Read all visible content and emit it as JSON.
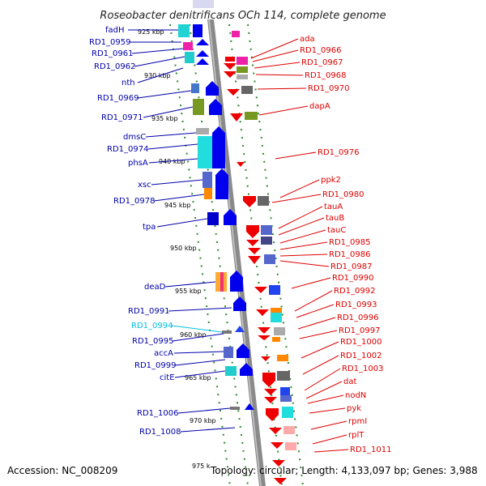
{
  "title": "Roseobacter denitrificans OCh 114, complete genome",
  "footer": {
    "accession": "Accession: NC_008209",
    "stats": "Topology: circular; Length: 4,133,097 bp; Genes: 3,988"
  },
  "colors": {
    "left_label": "#0000aa",
    "highlight_label": "#00c0e0",
    "right_label": "#dd0000",
    "backbone": "#8a8a8a",
    "tick_dots": "#2e8b2e"
  },
  "kbp_ticks": [
    "925 kbp",
    "930 kbp",
    "935 kbp",
    "940 kbp",
    "945 kbp",
    "950 kbp",
    "955 kbp",
    "960 kbp",
    "965 kbp",
    "970 kbp",
    "975 k"
  ],
  "left_genes": [
    "fadH",
    "RD1_0959",
    "RD1_0961",
    "RD1_0962",
    "nth",
    "RD1_0969",
    "RD1_0971",
    "dmsC",
    "RD1_0974",
    "phsA",
    "xsc",
    "RD1_0978",
    "tpa",
    "deaD",
    "RD1_0991",
    "RD1_0994",
    "RD1_0995",
    "accA",
    "RD1_0999",
    "citE",
    "RD1_1006",
    "RD1_1008"
  ],
  "right_genes": [
    "ada",
    "RD1_0966",
    "RD1_0967",
    "RD1_0968",
    "RD1_0970",
    "dapA",
    "RD1_0976",
    "ppk2",
    "RD1_0980",
    "tauA",
    "tauB",
    "tauC",
    "RD1_0985",
    "RD1_0986",
    "RD1_0987",
    "RD1_0990",
    "RD1_0992",
    "RD1_0993",
    "RD1_0996",
    "RD1_0997",
    "RD1_1000",
    "RD1_1002",
    "RD1_1003",
    "dat",
    "nodN",
    "pyk",
    "rpmI",
    "rplT",
    "RD1_1011"
  ]
}
